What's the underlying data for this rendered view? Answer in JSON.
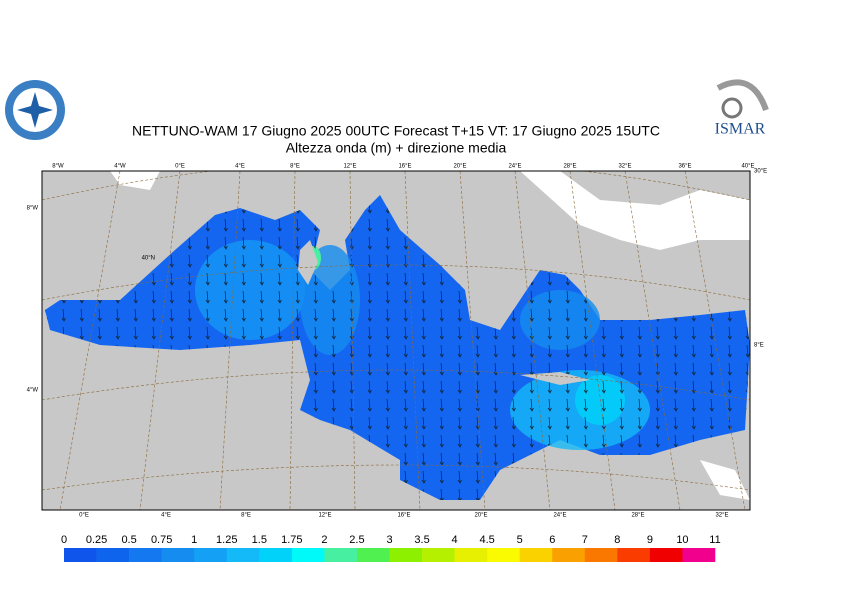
{
  "header": {
    "title": "NETTUNO-WAM  17   Giugno  2025 00UTC Forecast T+15 VT: 17   Giugno  2025 15UTC",
    "subtitle": "Altezza onda (m) + direzione media",
    "logo_text": "ISMAR"
  },
  "map": {
    "top_labels": [
      "8°W",
      "4°W",
      "0°E",
      "4°E",
      "8°E",
      "12°E",
      "16°E",
      "20°E",
      "24°E",
      "28°E",
      "32°E",
      "36°E",
      "40°E"
    ],
    "bottom_labels": [
      "0°E",
      "4°E",
      "8°E",
      "12°E",
      "16°E",
      "20°E",
      "24°E",
      "28°E",
      "32°E"
    ],
    "left_labels": [
      "8°W",
      "40°N",
      "4°W"
    ],
    "right_labels": [
      "30°E",
      "8°E"
    ]
  },
  "legend": {
    "levels": [
      0,
      0.25,
      0.5,
      0.75,
      1,
      1.25,
      1.5,
      1.75,
      2,
      2.5,
      3,
      3.5,
      4,
      4.5,
      5,
      6,
      7,
      8,
      9,
      10,
      11
    ],
    "colors": [
      "#0f55eb",
      "#0f64ee",
      "#1478f0",
      "#148cf0",
      "#14a0f5",
      "#14b9f8",
      "#00d2fa",
      "#00fafa",
      "#46f0a0",
      "#50f050",
      "#8cf000",
      "#b4f000",
      "#e6f000",
      "#fafa00",
      "#fad200",
      "#faa000",
      "#fa7800",
      "#fa3c00",
      "#f00000",
      "#f0008c"
    ]
  }
}
